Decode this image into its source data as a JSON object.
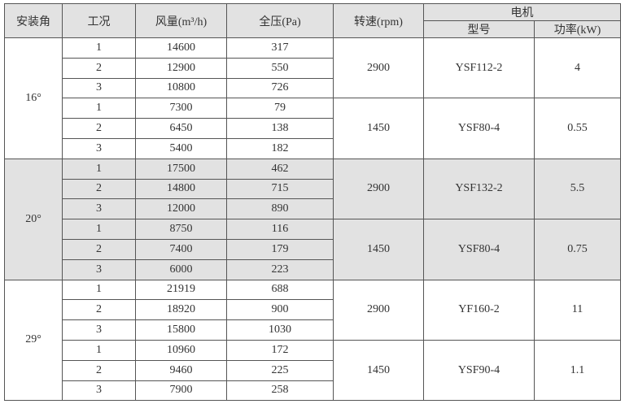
{
  "header": {
    "angle": "安装角",
    "condition": "工况",
    "flow": "风量(m³/h)",
    "pressure": "全压(Pa)",
    "speed": "转速(rpm)",
    "motor": "电机",
    "model": "型号",
    "power": "功率(kW)"
  },
  "groups": [
    {
      "angle": "16°",
      "subs": [
        {
          "speed": "2900",
          "model": "YSF112-2",
          "power": "4",
          "rows": [
            [
              "1",
              "14600",
              "317"
            ],
            [
              "2",
              "12900",
              "550"
            ],
            [
              "3",
              "10800",
              "726"
            ]
          ]
        },
        {
          "speed": "1450",
          "model": "YSF80-4",
          "power": "0.55",
          "rows": [
            [
              "1",
              "7300",
              "79"
            ],
            [
              "2",
              "6450",
              "138"
            ],
            [
              "3",
              "5400",
              "182"
            ]
          ]
        }
      ]
    },
    {
      "angle": "20°",
      "subs": [
        {
          "speed": "2900",
          "model": "YSF132-2",
          "power": "5.5",
          "rows": [
            [
              "1",
              "17500",
              "462"
            ],
            [
              "2",
              "14800",
              "715"
            ],
            [
              "3",
              "12000",
              "890"
            ]
          ]
        },
        {
          "speed": "1450",
          "model": "YSF80-4",
          "power": "0.75",
          "rows": [
            [
              "1",
              "8750",
              "116"
            ],
            [
              "2",
              "7400",
              "179"
            ],
            [
              "3",
              "6000",
              "223"
            ]
          ]
        }
      ]
    },
    {
      "angle": "29°",
      "subs": [
        {
          "speed": "2900",
          "model": "YF160-2",
          "power": "11",
          "rows": [
            [
              "1",
              "21919",
              "688"
            ],
            [
              "2",
              "18920",
              "900"
            ],
            [
              "3",
              "15800",
              "1030"
            ]
          ]
        },
        {
          "speed": "1450",
          "model": "YSF90-4",
          "power": "1.1",
          "rows": [
            [
              "1",
              "10960",
              "172"
            ],
            [
              "2",
              "9460",
              "225"
            ],
            [
              "3",
              "7900",
              "258"
            ]
          ]
        }
      ]
    }
  ],
  "colors": {
    "header_bg": "#e2e2e2",
    "shaded_group_bg": "#e2e2e2"
  }
}
